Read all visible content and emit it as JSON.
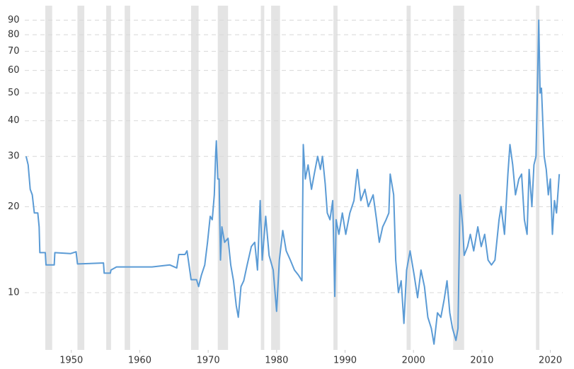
{
  "chart_data": {
    "type": "line",
    "log_scale_y": true,
    "grid": true,
    "color": "#5b9bd5",
    "band_color": "#e4e4e4",
    "xlim": [
      1943.2,
      2021.8
    ],
    "xticks": [
      1950,
      1960,
      1970,
      1980,
      1990,
      2000,
      2010,
      2020
    ],
    "ylim": [
      6.3,
      100
    ],
    "yticks": [
      10,
      20,
      30,
      40,
      50,
      60,
      70,
      80,
      90
    ],
    "recessions": [
      [
        1946.2,
        1947.2
      ],
      [
        1950.9,
        1951.9
      ],
      [
        1955.1,
        1955.8
      ],
      [
        1957.8,
        1958.6
      ],
      [
        1967.5,
        1968.6
      ],
      [
        1971.4,
        1972.9
      ],
      [
        1977.7,
        1978.2
      ],
      [
        1979.2,
        1980.5
      ],
      [
        1988.3,
        1988.9
      ],
      [
        1999.0,
        1999.6
      ],
      [
        2005.8,
        2007.4
      ],
      [
        2017.9,
        2018.4
      ]
    ],
    "x": [
      1943.4,
      1943.7,
      1944.0,
      1944.3,
      1944.6,
      1945.1,
      1945.3,
      1945.4,
      1946.2,
      1946.3,
      1947.5,
      1947.6,
      1949.9,
      1950.7,
      1950.9,
      1954.7,
      1954.8,
      1955.7,
      1955.8,
      1956.6,
      1961.8,
      1964.4,
      1965.4,
      1965.7,
      1966.6,
      1966.9,
      1967.1,
      1967.5,
      1968.3,
      1968.6,
      1969.0,
      1969.5,
      1969.9,
      1970.3,
      1970.6,
      1970.9,
      1971.1,
      1971.2,
      1971.4,
      1971.6,
      1971.8,
      1972.0,
      1972.4,
      1972.9,
      1973.3,
      1973.7,
      1974.1,
      1974.4,
      1974.8,
      1975.2,
      1975.7,
      1976.3,
      1976.8,
      1977.2,
      1977.6,
      1977.9,
      1978.4,
      1978.9,
      1979.5,
      1980.0,
      1980.4,
      1980.9,
      1981.4,
      1982.0,
      1982.6,
      1983.2,
      1983.7,
      1983.9,
      1984.2,
      1984.6,
      1985.1,
      1985.5,
      1986.0,
      1986.4,
      1986.7,
      1987.1,
      1987.4,
      1987.8,
      1988.2,
      1988.5,
      1988.7,
      1989.1,
      1989.6,
      1990.1,
      1990.7,
      1991.3,
      1991.8,
      1992.3,
      1992.9,
      1993.4,
      1994.1,
      1994.6,
      1995.0,
      1995.5,
      1996.0,
      1996.4,
      1996.6,
      1997.1,
      1997.4,
      1997.8,
      1998.2,
      1998.6,
      1999.0,
      1999.5,
      2000.1,
      2000.6,
      2001.1,
      2001.6,
      2002.1,
      2002.6,
      2003.0,
      2003.5,
      2004.0,
      2004.5,
      2004.9,
      2005.3,
      2005.7,
      2006.2,
      2006.5,
      2006.8,
      2007.2,
      2007.4,
      2007.9,
      2008.3,
      2008.8,
      2009.4,
      2009.9,
      2010.4,
      2010.9,
      2011.4,
      2011.9,
      2012.5,
      2012.8,
      2013.3,
      2013.8,
      2014.1,
      2014.5,
      2014.9,
      2015.4,
      2015.8,
      2016.2,
      2016.6,
      2016.9,
      2017.3,
      2017.6,
      2017.9,
      2018.1,
      2018.3,
      2018.5,
      2018.7,
      2019.1,
      2019.4,
      2019.7,
      2020.0,
      2020.3,
      2020.6,
      2020.9,
      2021.3
    ],
    "values": [
      30,
      28,
      23,
      22,
      19,
      19,
      17,
      13.8,
      13.8,
      12.5,
      12.5,
      13.8,
      13.7,
      13.9,
      12.6,
      12.7,
      11.7,
      11.7,
      12.0,
      12.3,
      12.3,
      12.5,
      12.2,
      13.6,
      13.6,
      14.0,
      13.0,
      11.1,
      11.1,
      10.5,
      11.5,
      12.5,
      15,
      18.5,
      18,
      22,
      31,
      34,
      25,
      25,
      13,
      17,
      15,
      15.5,
      12.5,
      11,
      9,
      8.2,
      10.5,
      11,
      12.5,
      14.5,
      15,
      12,
      21,
      13,
      18.5,
      13.5,
      12,
      8.6,
      13,
      16.5,
      14,
      13,
      12,
      11.5,
      11,
      33,
      25,
      28,
      23,
      26,
      30,
      27,
      30,
      24,
      19,
      18,
      21,
      9.7,
      18,
      16,
      19,
      16,
      19,
      21,
      27,
      21,
      23,
      20,
      22,
      18,
      15,
      17,
      18,
      19,
      26,
      22,
      13,
      10,
      11,
      7.8,
      12,
      14,
      11.5,
      9.6,
      12,
      10.5,
      8.2,
      7.5,
      6.6,
      8.5,
      8.2,
      9.5,
      11,
      8.5,
      7.5,
      6.8,
      7.5,
      22,
      17,
      13.5,
      14.5,
      16,
      14,
      17,
      14.5,
      16,
      13,
      12.5,
      13,
      18,
      20,
      16,
      26,
      33,
      28,
      22,
      25,
      26,
      18,
      16,
      27,
      20,
      28,
      30,
      50,
      90,
      50,
      52,
      30,
      27,
      22,
      25,
      16,
      21,
      19,
      26
    ]
  }
}
